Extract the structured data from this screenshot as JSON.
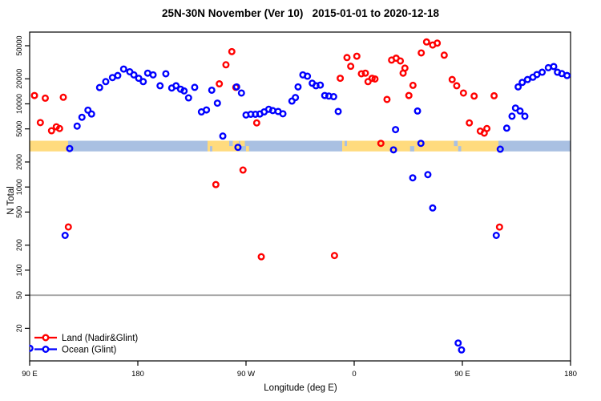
{
  "title": "25N-30N November (Ver 10)   2015-01-01 to 2020-12-18",
  "xlabel": "Longitude (deg E)",
  "ylabel": "N Total",
  "colors": {
    "land_series": "#FF0000",
    "ocean_series": "#0000FF",
    "band_land": "#FFDB7E",
    "band_ocean": "#A9C0E2",
    "reference_line": "#A8A8A8",
    "axis": "#000000"
  },
  "legend": [
    {
      "label": "Land (Nadir&Glint)",
      "color": "#FF0000"
    },
    {
      "label": "Ocean (Glint)",
      "color": "#0000FF"
    }
  ],
  "chart_data": {
    "type": "scatter",
    "title": "25N-30N November (Ver 10)   2015-01-01 to 2020-12-18",
    "xlabel": "Longitude (deg E)",
    "ylabel": "N Total",
    "x_axis": {
      "range": [
        90,
        540
      ],
      "ticks": [
        {
          "value": 90,
          "label": "90 E"
        },
        {
          "value": 180,
          "label": "180"
        },
        {
          "value": 270,
          "label": "90 W"
        },
        {
          "value": 360,
          "label": "0"
        },
        {
          "value": 450,
          "label": "90 E"
        },
        {
          "value": 540,
          "label": "180"
        }
      ]
    },
    "y_axis": {
      "scale": "log",
      "range": [
        8,
        73000
      ],
      "ticks": [
        {
          "value": 20,
          "label": "20"
        },
        {
          "value": 50,
          "label": "50"
        },
        {
          "value": 100,
          "label": "100"
        },
        {
          "value": 200,
          "label": "200"
        },
        {
          "value": 500,
          "label": "500"
        },
        {
          "value": 1000,
          "label": "1000"
        },
        {
          "value": 2000,
          "label": "2000"
        },
        {
          "value": 5000,
          "label": "5000"
        },
        {
          "value": 10000,
          "label": "10000"
        },
        {
          "value": 20000,
          "label": "20000"
        },
        {
          "value": 50000,
          "label": "50000"
        }
      ]
    },
    "reference_line_y": 50,
    "surface_band": {
      "value_top": 3600,
      "value_bottom": 2680,
      "segments": [
        {
          "from": 90,
          "to": 122,
          "surface": "land"
        },
        {
          "from": 122,
          "to": 238,
          "surface": "ocean"
        },
        {
          "from": 238,
          "to": 264,
          "surface": "land"
        },
        {
          "from": 264,
          "to": 350,
          "surface": "ocean"
        },
        {
          "from": 350,
          "to": 480,
          "surface": "land"
        },
        {
          "from": 480,
          "to": 540,
          "surface": "ocean"
        }
      ],
      "flecks": [
        {
          "from": 240,
          "to": 242,
          "surface": "ocean",
          "half": "bottom"
        },
        {
          "from": 256,
          "to": 259,
          "surface": "ocean",
          "half": "top"
        },
        {
          "from": 265,
          "to": 269,
          "surface": "land",
          "half": "top"
        },
        {
          "from": 270,
          "to": 272.5,
          "surface": "land",
          "half": "bottom"
        },
        {
          "from": 352,
          "to": 354,
          "surface": "ocean",
          "half": "top"
        },
        {
          "from": 406.5,
          "to": 410,
          "surface": "ocean",
          "half": "bottom"
        },
        {
          "from": 443,
          "to": 446,
          "surface": "ocean",
          "half": "top"
        },
        {
          "from": 446.5,
          "to": 449,
          "surface": "ocean",
          "half": "bottom"
        }
      ]
    },
    "series": [
      {
        "name": "Land (Nadir&Glint)",
        "color": "#FF0000",
        "points": [
          [
            94,
            12600
          ],
          [
            103,
            11700
          ],
          [
            118,
            12000
          ],
          [
            98.9,
            5950
          ],
          [
            108.2,
            4750
          ],
          [
            112.2,
            5300
          ],
          [
            114.9,
            5050
          ],
          [
            122.2,
            331
          ],
          [
            244.9,
            1070
          ],
          [
            247.8,
            17400
          ],
          [
            253.3,
            29500
          ],
          [
            258.2,
            42500
          ],
          [
            261.5,
            15800
          ],
          [
            267.5,
            1600
          ],
          [
            278.9,
            5900
          ],
          [
            282.7,
            145
          ],
          [
            343.6,
            150
          ],
          [
            348.4,
            20300
          ],
          [
            354,
            36000
          ],
          [
            357.1,
            28300
          ],
          [
            362.2,
            37400
          ],
          [
            366,
            23000
          ],
          [
            369.3,
            23400
          ],
          [
            371.5,
            18500
          ],
          [
            374.9,
            20300
          ],
          [
            377.3,
            19900
          ],
          [
            382.2,
            3350
          ],
          [
            387.3,
            11300
          ],
          [
            391.1,
            33600
          ],
          [
            394.9,
            35400
          ],
          [
            398.4,
            32800
          ],
          [
            400.7,
            23400
          ],
          [
            402.2,
            26900
          ],
          [
            405.5,
            12600
          ],
          [
            408.9,
            16700
          ],
          [
            415.8,
            41000
          ],
          [
            420.2,
            55500
          ],
          [
            425.3,
            51000
          ],
          [
            429.1,
            53700
          ],
          [
            434.9,
            38500
          ],
          [
            441.5,
            19600
          ],
          [
            445.3,
            16500
          ],
          [
            450.9,
            13500
          ],
          [
            455.8,
            5900
          ],
          [
            459.8,
            12400
          ],
          [
            464.9,
            4700
          ],
          [
            468.2,
            4450
          ],
          [
            470.4,
            5050
          ],
          [
            476.4,
            12500
          ],
          [
            480.9,
            330
          ]
        ]
      },
      {
        "name": "Ocean (Glint)",
        "color": "#0000FF",
        "points": [
          [
            90.2,
            11.5
          ],
          [
            119.5,
            262
          ],
          [
            123.3,
            2900
          ],
          [
            129.5,
            5400
          ],
          [
            133.5,
            6900
          ],
          [
            138.5,
            8400
          ],
          [
            141.5,
            7550
          ],
          [
            148.2,
            15700
          ],
          [
            153.3,
            18500
          ],
          [
            158.9,
            20700
          ],
          [
            163.3,
            21900
          ],
          [
            168.2,
            26200
          ],
          [
            173.3,
            24300
          ],
          [
            176.7,
            22300
          ],
          [
            180.7,
            20300
          ],
          [
            184.5,
            18500
          ],
          [
            188.2,
            23400
          ],
          [
            192.7,
            22300
          ],
          [
            198.5,
            16500
          ],
          [
            203.3,
            23000
          ],
          [
            208.2,
            15500
          ],
          [
            211.8,
            16500
          ],
          [
            215.6,
            15000
          ],
          [
            218.5,
            14300
          ],
          [
            222.2,
            11800
          ],
          [
            227.3,
            15800
          ],
          [
            232.9,
            8000
          ],
          [
            237.1,
            8450
          ],
          [
            241.5,
            14600
          ],
          [
            246.2,
            10200
          ],
          [
            250.7,
            4100
          ],
          [
            262.2,
            16000
          ],
          [
            263.3,
            3000
          ],
          [
            266.2,
            13500
          ],
          [
            270,
            7350
          ],
          [
            274,
            7500
          ],
          [
            277.8,
            7500
          ],
          [
            281.5,
            7550
          ],
          [
            285.1,
            8000
          ],
          [
            288.9,
            8600
          ],
          [
            292.2,
            8300
          ],
          [
            296.7,
            8100
          ],
          [
            300.7,
            7600
          ],
          [
            308.2,
            10800
          ],
          [
            311.1,
            11900
          ],
          [
            313.3,
            16000
          ],
          [
            317.3,
            22300
          ],
          [
            321.1,
            21500
          ],
          [
            325.1,
            17700
          ],
          [
            328.2,
            16500
          ],
          [
            331.8,
            16800
          ],
          [
            335.5,
            12600
          ],
          [
            338.9,
            12400
          ],
          [
            342.9,
            12200
          ],
          [
            346.7,
            8100
          ],
          [
            392.7,
            2800
          ],
          [
            394.4,
            4900
          ],
          [
            408.7,
            1290
          ],
          [
            412.7,
            8200
          ],
          [
            415.5,
            3350
          ],
          [
            421.3,
            1410
          ],
          [
            425.3,
            560
          ],
          [
            446.5,
            13.3
          ],
          [
            449.3,
            11
          ],
          [
            478.2,
            262
          ],
          [
            481.5,
            2850
          ],
          [
            486.9,
            5100
          ],
          [
            491.3,
            7100
          ],
          [
            494.2,
            8900
          ],
          [
            498,
            8200
          ],
          [
            502,
            7100
          ],
          [
            496.4,
            16000
          ],
          [
            499.8,
            18100
          ],
          [
            504.2,
            19600
          ],
          [
            508.7,
            20900
          ],
          [
            512,
            22500
          ],
          [
            516.4,
            24000
          ],
          [
            521.5,
            27200
          ],
          [
            526,
            28100
          ],
          [
            529.1,
            24000
          ],
          [
            532.7,
            23100
          ],
          [
            537.1,
            21900
          ]
        ]
      }
    ]
  }
}
